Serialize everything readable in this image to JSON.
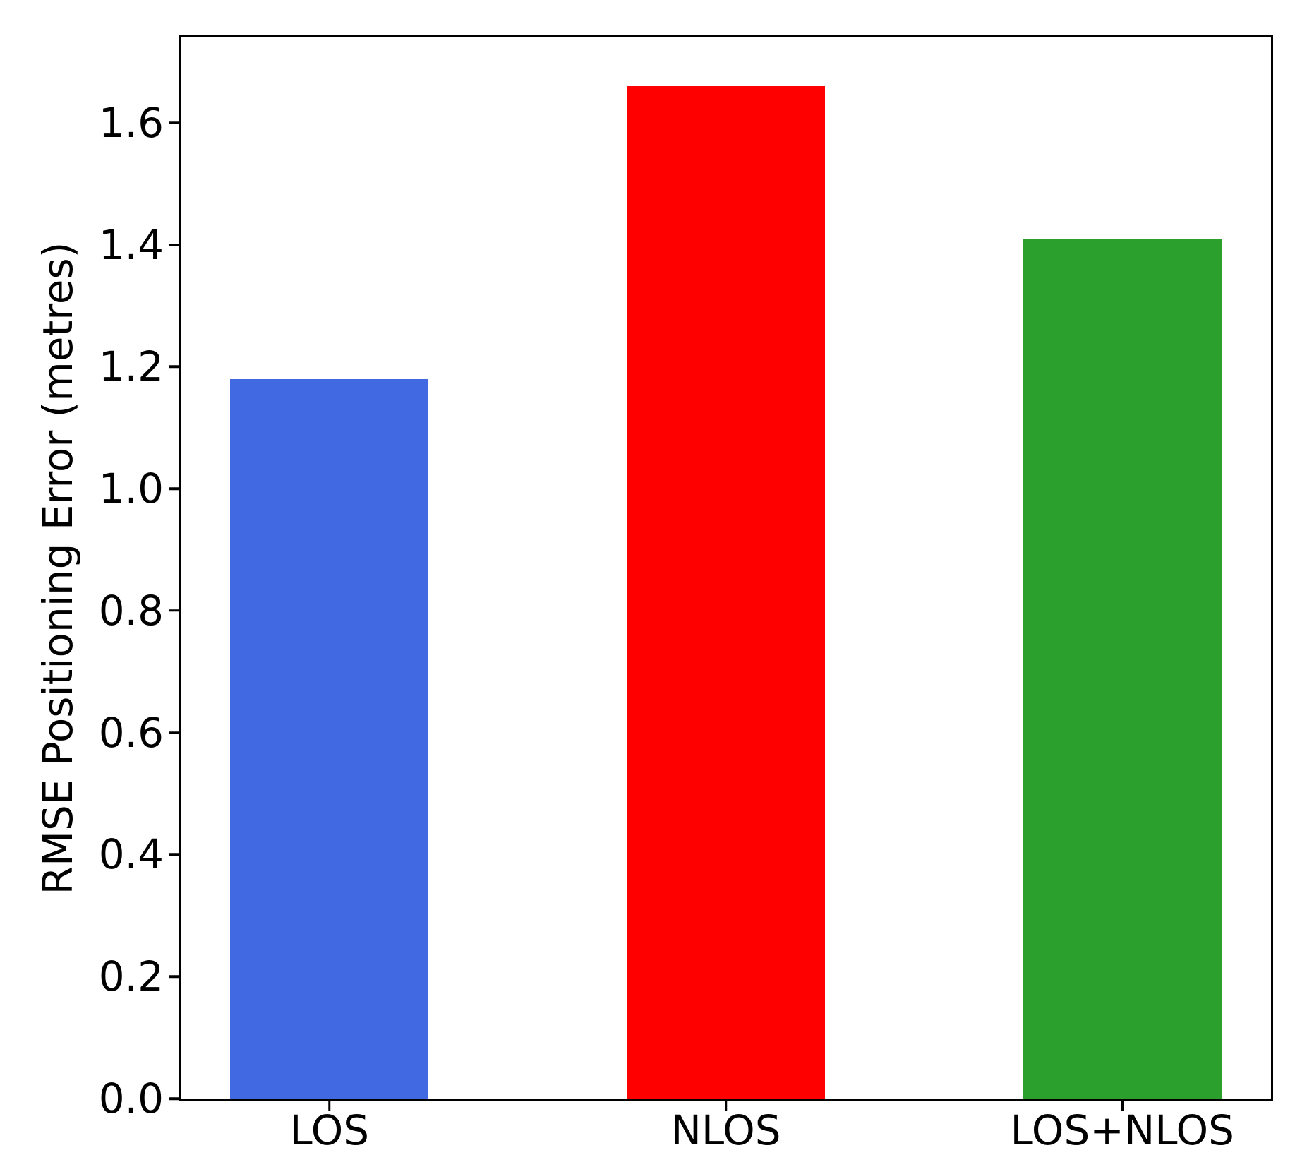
{
  "chart_data": {
    "type": "bar",
    "title": "",
    "xlabel": "",
    "ylabel": "RMSE Positioning Error (metres)",
    "categories": [
      "LOS",
      "NLOS",
      "LOS+NLOS"
    ],
    "values": [
      1.18,
      1.66,
      1.41
    ],
    "colors": [
      "#4169E1",
      "#FF0000",
      "#2CA02C"
    ],
    "ylim": [
      0,
      1.74
    ],
    "yticks": [
      0.0,
      0.2,
      0.4,
      0.6,
      0.8,
      1.0,
      1.2,
      1.4,
      1.6
    ],
    "ytick_labels": [
      "0.0",
      "0.2",
      "0.4",
      "0.6",
      "0.8",
      "1.0",
      "1.2",
      "1.4",
      "1.6"
    ],
    "bar_width_frac": 0.5,
    "grid": false,
    "legend": false,
    "frame": "full-box",
    "axis_color": "#000000",
    "background_color": "#FFFFFF"
  }
}
